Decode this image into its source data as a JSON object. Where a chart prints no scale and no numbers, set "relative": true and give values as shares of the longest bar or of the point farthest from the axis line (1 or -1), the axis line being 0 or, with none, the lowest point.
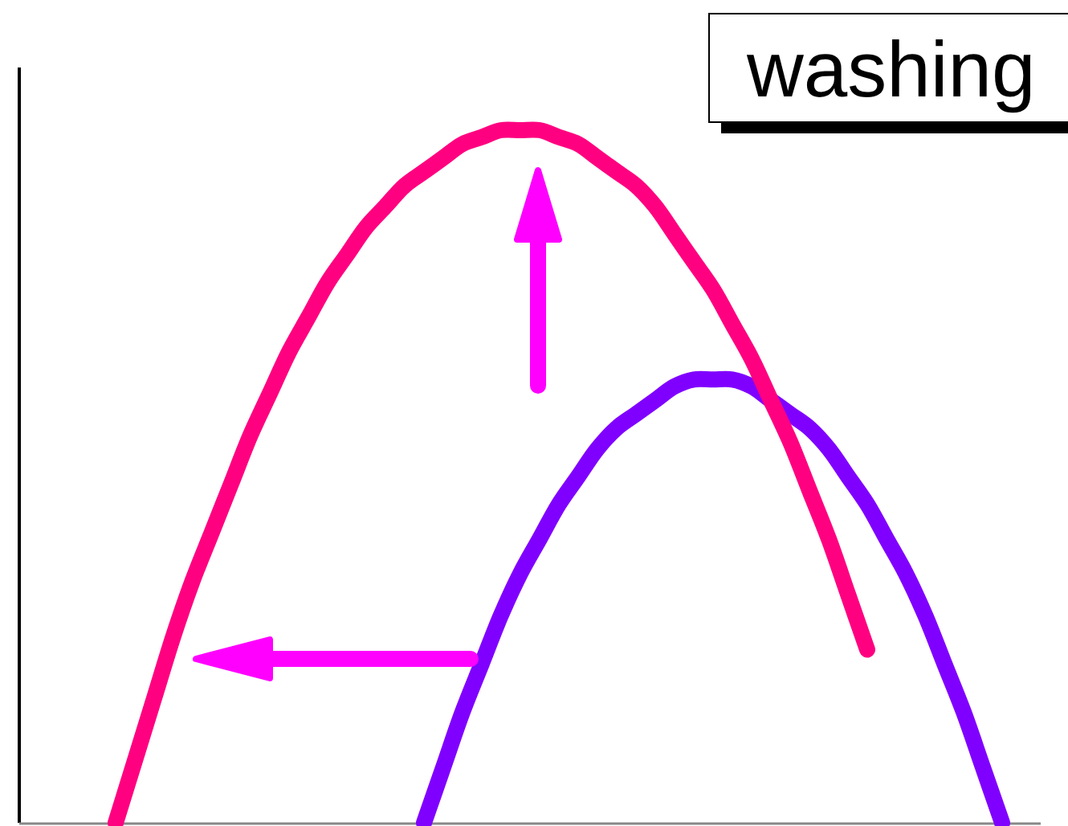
{
  "chart_data": {
    "type": "line",
    "title": "washing",
    "relative": true,
    "categories": [
      null,
      null,
      null,
      null,
      null,
      null,
      null,
      null,
      null,
      null,
      null,
      null,
      null,
      null,
      null,
      null,
      null,
      null,
      null,
      null,
      null,
      null,
      null,
      null,
      null,
      null,
      null,
      null,
      null,
      null,
      null,
      null,
      null,
      null,
      null,
      null,
      null,
      null,
      null,
      null,
      null,
      null,
      null,
      null,
      null,
      null,
      null,
      null,
      null,
      null,
      null,
      null,
      null,
      null
    ],
    "series": [
      {
        "color": "#8000ff",
        "values": [
          null,
          null,
          null,
          null,
          null,
          null,
          null,
          null,
          null,
          null,
          null,
          null,
          null,
          null,
          null,
          null,
          null,
          null,
          null,
          null,
          null,
          0,
          0.08,
          0.16,
          0.23,
          0.3,
          0.36,
          0.41,
          0.46,
          0.5,
          0.54,
          0.57,
          0.59,
          0.61,
          0.63,
          0.64,
          0.64,
          0.64,
          0.63,
          0.61,
          0.59,
          0.57,
          0.54,
          0.5,
          0.46,
          0.41,
          0.36,
          0.3,
          0.23,
          0.16,
          0.08,
          0,
          null,
          null
        ]
      },
      {
        "color": "#ff0080",
        "values": [
          null,
          null,
          null,
          null,
          null,
          0,
          0.09,
          0.18,
          0.27,
          0.35,
          0.42,
          0.49,
          0.56,
          0.62,
          0.68,
          0.73,
          0.78,
          0.82,
          0.86,
          0.89,
          0.92,
          0.94,
          0.96,
          0.98,
          0.99,
          1,
          1,
          1,
          0.99,
          0.98,
          0.96,
          0.94,
          0.92,
          0.89,
          0.85,
          0.81,
          0.77,
          0.72,
          0.67,
          0.61,
          0.55,
          0.48,
          0.41,
          0.33,
          0.25,
          null,
          null,
          null,
          null,
          null,
          null,
          null,
          null,
          null
        ]
      }
    ]
  }
}
